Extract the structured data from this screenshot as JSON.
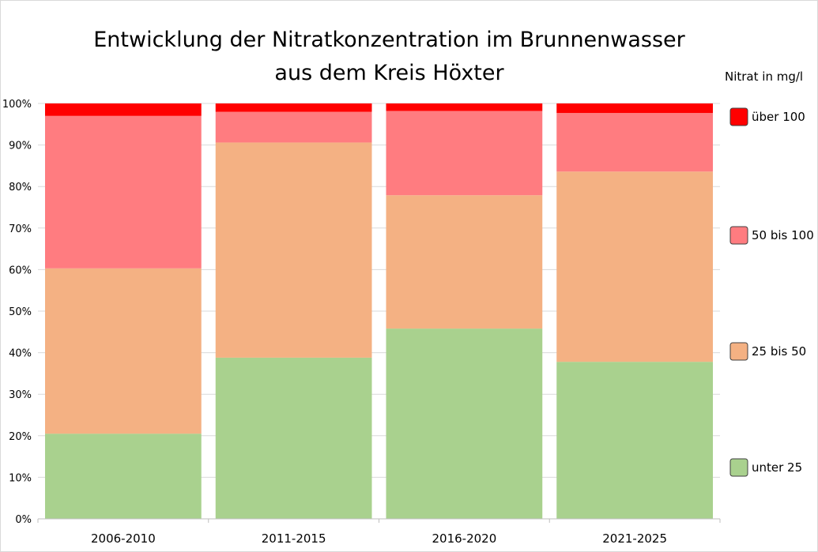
{
  "chart_data": {
    "type": "bar",
    "stacked": true,
    "percent": true,
    "title_lines": [
      "Entwicklung der Nitratkonzentration im Brunnenwasser",
      "aus dem Kreis Höxter"
    ],
    "legend_title": "Nitrat in mg/l",
    "categories": [
      "2006-2010",
      "2011-2015",
      "2016-2020",
      "2021-2025"
    ],
    "ylim": [
      0,
      100
    ],
    "yticks": [
      "0%",
      "10%",
      "20%",
      "30%",
      "40%",
      "50%",
      "60%",
      "70%",
      "80%",
      "90%",
      "100%"
    ],
    "grid": true,
    "legend_position": "right",
    "series": [
      {
        "name": "unter 25",
        "color": "#a9d18e",
        "values": [
          20.5,
          38.8,
          45.8,
          37.8
        ]
      },
      {
        "name": "25 bis 50",
        "color": "#f4b183",
        "values": [
          39.8,
          51.8,
          32.1,
          45.8
        ]
      },
      {
        "name": "50 bis 100",
        "color": "#ff7c80",
        "values": [
          36.7,
          7.4,
          20.3,
          14.1
        ]
      },
      {
        "name": "über 100",
        "color": "#ff0000",
        "values": [
          3.0,
          2.0,
          1.8,
          2.3
        ]
      }
    ]
  }
}
